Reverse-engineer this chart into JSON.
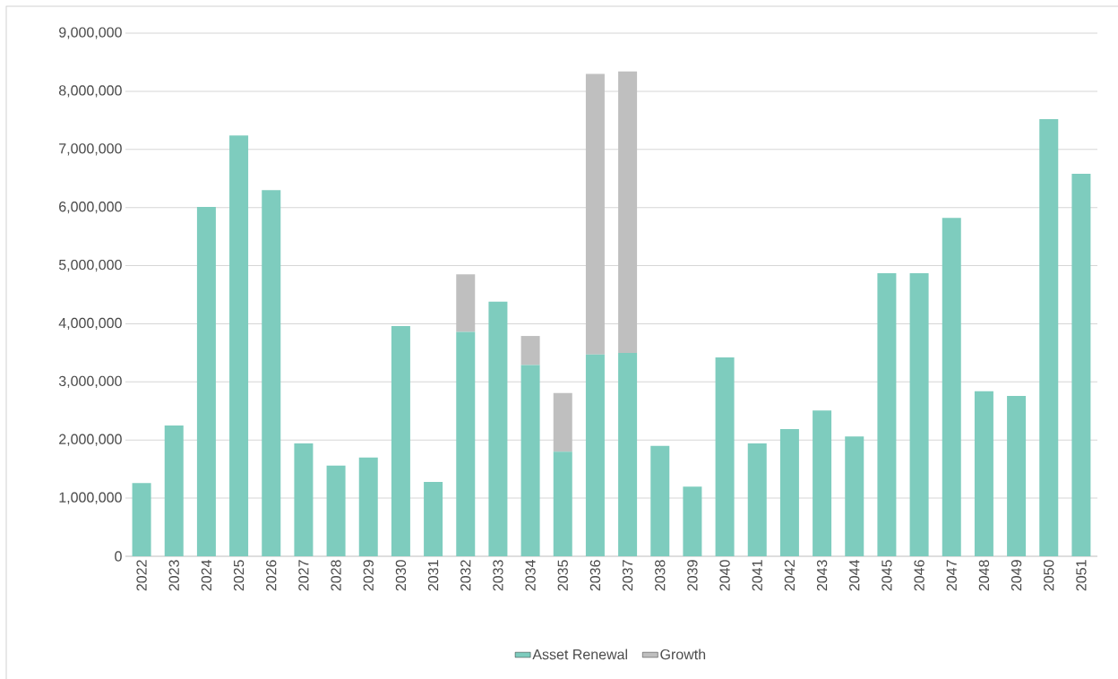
{
  "chart_data": {
    "type": "bar",
    "stacked": true,
    "categories": [
      "2022",
      "2023",
      "2024",
      "2025",
      "2026",
      "2027",
      "2028",
      "2029",
      "2030",
      "2031",
      "2032",
      "2033",
      "2034",
      "2035",
      "2036",
      "2037",
      "2038",
      "2039",
      "2040",
      "2041",
      "2042",
      "2043",
      "2044",
      "2045",
      "2046",
      "2047",
      "2048",
      "2049",
      "2050",
      "2051"
    ],
    "series": [
      {
        "name": "Asset Renewal",
        "color": "#7eccbe",
        "values": [
          1260000,
          2250000,
          6010000,
          7240000,
          6300000,
          1940000,
          1560000,
          1700000,
          3960000,
          1280000,
          3860000,
          4380000,
          3290000,
          1800000,
          3470000,
          3500000,
          1900000,
          1200000,
          3420000,
          1940000,
          2190000,
          2510000,
          2060000,
          4870000,
          4870000,
          5820000,
          2840000,
          2760000,
          7520000,
          6580000
        ]
      },
      {
        "name": "Growth",
        "color": "#bfbfbf",
        "values": [
          null,
          null,
          null,
          null,
          null,
          null,
          null,
          null,
          null,
          null,
          990000,
          null,
          500000,
          1010000,
          4830000,
          4840000,
          null,
          null,
          null,
          null,
          null,
          null,
          null,
          null,
          null,
          null,
          null,
          null,
          null,
          null
        ]
      }
    ],
    "ylim": [
      0,
      9000000
    ],
    "yticks": [
      {
        "value": 0,
        "label": "0"
      },
      {
        "value": 1000000,
        "label": "1,000,000"
      },
      {
        "value": 2000000,
        "label": "2,000,000"
      },
      {
        "value": 3000000,
        "label": "3,000,000"
      },
      {
        "value": 4000000,
        "label": "4,000,000"
      },
      {
        "value": 5000000,
        "label": "5,000,000"
      },
      {
        "value": 6000000,
        "label": "6,000,000"
      },
      {
        "value": 7000000,
        "label": "7,000,000"
      },
      {
        "value": 8000000,
        "label": "8,000,000"
      },
      {
        "value": 9000000,
        "label": "9,000,000"
      }
    ],
    "grid": "y",
    "legend": "bottom"
  }
}
